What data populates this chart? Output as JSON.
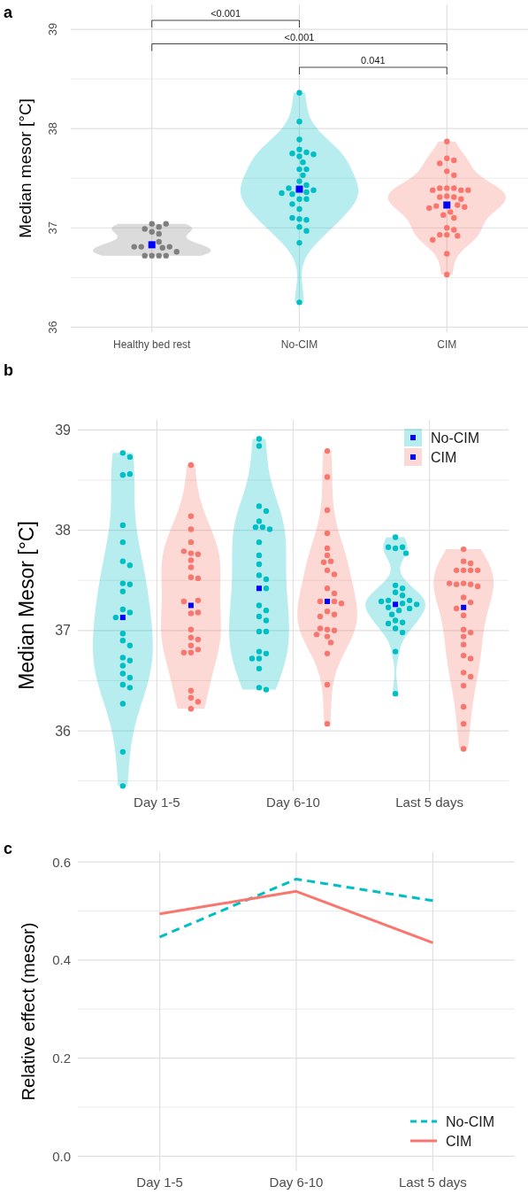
{
  "chart_data": [
    {
      "type": "scatter",
      "title": "a",
      "ylabel": "Median mesor [°C]",
      "categories": [
        "Healthy bed rest",
        "No-CIM",
        "CIM"
      ],
      "ylim": [
        35.95,
        39.25
      ],
      "yticks": [
        36,
        37,
        38,
        39
      ],
      "grid": true,
      "annotations": [
        "<0.001",
        "<0.001",
        "0.041"
      ],
      "series": [
        {
          "marker": "circle",
          "color": "#7f7f7f",
          "x": [
            "Healthy bed rest",
            "Healthy bed rest",
            "Healthy bed rest",
            "Healthy bed rest",
            "Healthy bed rest",
            "Healthy bed rest",
            "Healthy bed rest",
            "Healthy bed rest",
            "Healthy bed rest",
            "Healthy bed rest",
            "Healthy bed rest",
            "Healthy bed rest",
            "Healthy bed rest",
            "Healthy bed rest",
            "Healthy bed rest",
            "Healthy bed rest"
          ],
          "values": [
            37.04,
            36.96,
            37.01,
            36.99,
            36.94,
            37.04,
            36.86,
            36.81,
            36.8,
            36.81,
            36.81,
            36.72,
            36.72,
            36.72,
            36.76,
            36.72
          ]
        },
        {
          "marker": "circle",
          "color": "#00bfc4",
          "x": [
            "No-CIM",
            "No-CIM",
            "No-CIM",
            "No-CIM",
            "No-CIM",
            "No-CIM",
            "No-CIM",
            "No-CIM",
            "No-CIM",
            "No-CIM",
            "No-CIM",
            "No-CIM",
            "No-CIM",
            "No-CIM",
            "No-CIM",
            "No-CIM",
            "No-CIM",
            "No-CIM",
            "No-CIM",
            "No-CIM",
            "No-CIM",
            "No-CIM",
            "No-CIM",
            "No-CIM",
            "No-CIM",
            "No-CIM",
            "No-CIM",
            "No-CIM",
            "No-CIM",
            "No-CIM"
          ],
          "values": [
            38.36,
            38.07,
            37.89,
            37.79,
            37.76,
            37.75,
            37.74,
            37.72,
            37.66,
            37.59,
            37.59,
            37.53,
            37.47,
            37.43,
            37.4,
            37.38,
            37.36,
            37.35,
            37.34,
            37.29,
            37.29,
            37.24,
            37.19,
            37.09,
            37.08,
            37.1,
            37.01,
            36.97,
            36.85,
            36.25
          ]
        },
        {
          "marker": "circle",
          "color": "#f8766d",
          "x": [
            "CIM",
            "CIM",
            "CIM",
            "CIM",
            "CIM",
            "CIM",
            "CIM",
            "CIM",
            "CIM",
            "CIM",
            "CIM",
            "CIM",
            "CIM",
            "CIM",
            "CIM",
            "CIM",
            "CIM",
            "CIM",
            "CIM",
            "CIM",
            "CIM",
            "CIM",
            "CIM",
            "CIM",
            "CIM",
            "CIM",
            "CIM",
            "CIM",
            "CIM",
            "CIM",
            "CIM"
          ],
          "values": [
            37.87,
            37.7,
            37.68,
            37.65,
            37.57,
            37.53,
            37.4,
            37.4,
            37.4,
            37.38,
            37.38,
            37.38,
            37.32,
            37.31,
            37.31,
            37.29,
            37.23,
            37.22,
            37.21,
            37.2,
            37.16,
            37.13,
            37.1,
            37.0,
            36.98,
            36.93,
            36.93,
            36.92,
            36.88,
            36.74,
            36.53
          ]
        },
        {
          "marker": "square",
          "color": "#0000ff",
          "x": [
            "Healthy bed rest",
            "No-CIM",
            "CIM"
          ],
          "values": [
            36.83,
            37.39,
            37.23
          ]
        }
      ]
    },
    {
      "type": "scatter",
      "title": "b",
      "ylabel": "Median Mesor [°C]",
      "categories": [
        "Day 1-5",
        "Day 6-10",
        "Last 5 days"
      ],
      "ylim": [
        35.4,
        39.1
      ],
      "yticks": [
        36,
        37,
        38,
        39
      ],
      "grid": true,
      "legend": "top right",
      "series": [
        {
          "name": "No-CIM",
          "marker": "circle",
          "color": "#00bfc4",
          "x": [
            "Day 1-5",
            "Day 1-5",
            "Day 1-5",
            "Day 1-5",
            "Day 1-5",
            "Day 1-5",
            "Day 1-5",
            "Day 1-5",
            "Day 1-5",
            "Day 1-5",
            "Day 1-5",
            "Day 1-5",
            "Day 1-5",
            "Day 1-5",
            "Day 1-5",
            "Day 1-5",
            "Day 1-5",
            "Day 1-5",
            "Day 1-5",
            "Day 1-5",
            "Day 1-5",
            "Day 1-5",
            "Day 1-5",
            "Day 1-5",
            "Day 1-5",
            "Day 1-5",
            "Day 1-5",
            "Day 6-10",
            "Day 6-10",
            "Day 6-10",
            "Day 6-10",
            "Day 6-10",
            "Day 6-10",
            "Day 6-10",
            "Day 6-10",
            "Day 6-10",
            "Day 6-10",
            "Day 6-10",
            "Day 6-10",
            "Day 6-10",
            "Day 6-10",
            "Day 6-10",
            "Day 6-10",
            "Day 6-10",
            "Day 6-10",
            "Day 6-10",
            "Day 6-10",
            "Day 6-10",
            "Day 6-10",
            "Day 6-10",
            "Day 6-10",
            "Day 6-10",
            "Day 6-10",
            "Day 6-10",
            "Last 5 days",
            "Last 5 days",
            "Last 5 days",
            "Last 5 days",
            "Last 5 days",
            "Last 5 days",
            "Last 5 days",
            "Last 5 days",
            "Last 5 days",
            "Last 5 days",
            "Last 5 days",
            "Last 5 days",
            "Last 5 days",
            "Last 5 days",
            "Last 5 days",
            "Last 5 days",
            "Last 5 days",
            "Last 5 days",
            "Last 5 days",
            "Last 5 days",
            "Last 5 days",
            "Last 5 days",
            "Last 5 days",
            "Last 5 days",
            "Last 5 days"
          ],
          "values": [
            38.77,
            38.73,
            38.55,
            38.56,
            38.05,
            37.88,
            37.69,
            37.65,
            37.47,
            37.46,
            37.39,
            37.21,
            37.18,
            37.13,
            36.97,
            36.9,
            36.85,
            36.73,
            36.7,
            36.65,
            36.57,
            36.53,
            36.46,
            36.43,
            36.27,
            35.79,
            35.45,
            38.91,
            38.84,
            38.24,
            38.19,
            38.09,
            38.03,
            38.03,
            38.01,
            37.88,
            37.75,
            37.66,
            37.55,
            37.51,
            37.42,
            37.25,
            37.2,
            37.14,
            37.1,
            36.99,
            36.99,
            36.79,
            36.77,
            36.72,
            36.72,
            36.62,
            36.43,
            36.41,
            37.93,
            37.82,
            37.83,
            37.83,
            37.77,
            37.45,
            37.42,
            37.38,
            37.35,
            37.3,
            37.3,
            37.29,
            37.27,
            37.26,
            37.23,
            37.22,
            37.2,
            37.16,
            37.1,
            37.08,
            37.07,
            37.02,
            36.98,
            36.79,
            36.37
          ]
        },
        {
          "name": "CIM",
          "marker": "circle",
          "color": "#f8766d",
          "x": [
            "Day 1-5",
            "Day 1-5",
            "Day 1-5",
            "Day 1-5",
            "Day 1-5",
            "Day 1-5",
            "Day 1-5",
            "Day 1-5",
            "Day 1-5",
            "Day 1-5",
            "Day 1-5",
            "Day 1-5",
            "Day 1-5",
            "Day 1-5",
            "Day 1-5",
            "Day 1-5",
            "Day 1-5",
            "Day 1-5",
            "Day 1-5",
            "Day 1-5",
            "Day 1-5",
            "Day 1-5",
            "Day 1-5",
            "Day 1-5",
            "Day 1-5",
            "Day 1-5",
            "Day 6-10",
            "Day 6-10",
            "Day 6-10",
            "Day 6-10",
            "Day 6-10",
            "Day 6-10",
            "Day 6-10",
            "Day 6-10",
            "Day 6-10",
            "Day 6-10",
            "Day 6-10",
            "Day 6-10",
            "Day 6-10",
            "Day 6-10",
            "Day 6-10",
            "Day 6-10",
            "Day 6-10",
            "Day 6-10",
            "Day 6-10",
            "Day 6-10",
            "Day 6-10",
            "Day 6-10",
            "Day 6-10",
            "Day 6-10",
            "Day 6-10",
            "Day 6-10",
            "Day 6-10",
            "Last 5 days",
            "Last 5 days",
            "Last 5 days",
            "Last 5 days",
            "Last 5 days",
            "Last 5 days",
            "Last 5 days",
            "Last 5 days",
            "Last 5 days",
            "Last 5 days",
            "Last 5 days",
            "Last 5 days",
            "Last 5 days",
            "Last 5 days",
            "Last 5 days",
            "Last 5 days",
            "Last 5 days",
            "Last 5 days",
            "Last 5 days",
            "Last 5 days",
            "Last 5 days",
            "Last 5 days",
            "Last 5 days",
            "Last 5 days",
            "Last 5 days",
            "Last 5 days",
            "Last 5 days",
            "Last 5 days"
          ],
          "values": [
            38.65,
            38.14,
            38.01,
            37.88,
            37.77,
            37.76,
            37.7,
            37.79,
            37.63,
            37.53,
            37.52,
            37.3,
            37.29,
            37.17,
            37.18,
            37.01,
            36.93,
            36.91,
            36.85,
            36.81,
            36.78,
            36.78,
            36.4,
            36.33,
            36.29,
            36.22,
            38.79,
            38.53,
            38.2,
            37.97,
            37.82,
            37.75,
            37.69,
            37.68,
            37.6,
            37.56,
            37.42,
            37.37,
            37.29,
            37.29,
            37.27,
            37.19,
            37.16,
            37.14,
            37.01,
            37.0,
            37.02,
            36.96,
            36.94,
            36.88,
            36.77,
            36.46,
            36.07,
            37.81,
            37.69,
            37.67,
            37.6,
            37.6,
            37.6,
            37.6,
            37.47,
            37.46,
            37.46,
            37.44,
            37.47,
            37.33,
            37.28,
            37.22,
            37.15,
            37.01,
            36.98,
            36.94,
            36.86,
            36.75,
            36.72,
            36.58,
            36.54,
            36.45,
            36.24,
            36.07,
            35.82
          ]
        },
        {
          "marker": "square",
          "color": "#0000ff",
          "x": [
            "Day 1-5",
            "Day 6-10",
            "Last 5 days"
          ],
          "values": [
            37.13,
            37.42,
            37.26
          ]
        },
        {
          "marker": "square",
          "color": "#0000ff",
          "x": [
            "Day 1-5",
            "Day 6-10",
            "Last 5 days"
          ],
          "values": [
            37.25,
            37.29,
            37.23
          ]
        }
      ]
    },
    {
      "type": "line",
      "title": "c",
      "ylabel": "Relative effect (mesor)",
      "categories": [
        "Day 1-5",
        "Day 6-10",
        "Last 5 days"
      ],
      "ylim": [
        -0.03,
        0.62
      ],
      "yticks": [
        {
          "value": 0,
          "label": "0.0"
        },
        0.2,
        0.4,
        0.6
      ],
      "grid": true,
      "legend": "bottom right",
      "series": [
        {
          "name": "No-CIM",
          "color": "#00bfc4",
          "line_style": "dashed",
          "values": [
            0.447,
            0.565,
            0.521
          ]
        },
        {
          "name": "CIM",
          "color": "#f8766d",
          "line_style": "solid",
          "values": [
            0.494,
            0.54,
            0.435
          ]
        }
      ]
    }
  ]
}
